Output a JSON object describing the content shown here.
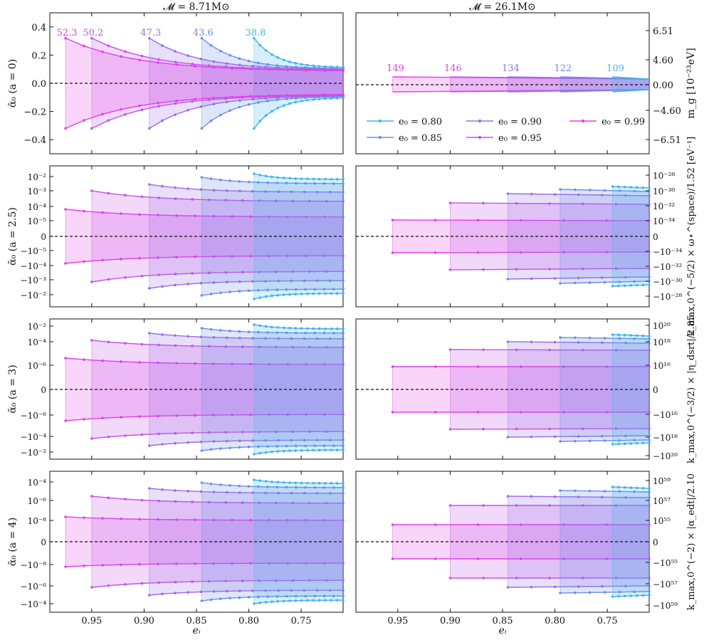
{
  "figure": {
    "col_titles": [
      "𝓜 = 8.71M⊙",
      "𝓜 = 26.1M⊙"
    ],
    "xlabel": "eᵢ",
    "x_ticks": [
      "0.95",
      "0.90",
      "0.85",
      "0.80",
      "0.75"
    ]
  },
  "colors": {
    "e0_0.80": "#43b4ec",
    "e0_0.85": "#6e8ee8",
    "e0_0.90": "#9a6ee6",
    "e0_0.95": "#c552e8",
    "e0_0.99": "#e43ee8",
    "zero_line": "#111111"
  },
  "chart_data": [
    {
      "type": "line",
      "panel": "row1-left",
      "ylabel": "ᾱ₀ (a = 0)",
      "y_ticks": [
        "0.4",
        "0.2",
        "0.0",
        "−0.2",
        "−0.4"
      ],
      "ylim": [
        -0.5,
        0.5
      ],
      "xlim": [
        0.99,
        0.71
      ],
      "annotations": [
        "52.3",
        "50.2",
        "47.3",
        "43.6",
        "38.8"
      ],
      "series": [
        {
          "name": "e0 = 0.99",
          "x_start": 0.975,
          "upper": [
            0.32,
            0.085
          ],
          "lower": [
            -0.32,
            -0.075
          ]
        },
        {
          "name": "e0 = 0.95",
          "x_start": 0.95,
          "upper": [
            0.32,
            0.09
          ],
          "lower": [
            -0.32,
            -0.08
          ]
        },
        {
          "name": "e0 = 0.90",
          "x_start": 0.895,
          "upper": [
            0.32,
            0.095
          ],
          "lower": [
            -0.32,
            -0.085
          ]
        },
        {
          "name": "e0 = 0.85",
          "x_start": 0.845,
          "upper": [
            0.32,
            0.1
          ],
          "lower": [
            -0.32,
            -0.09
          ]
        },
        {
          "name": "e0 = 0.80",
          "x_start": 0.795,
          "upper": [
            0.32,
            0.11
          ],
          "lower": [
            -0.32,
            -0.1
          ]
        }
      ]
    },
    {
      "type": "line",
      "panel": "row1-right",
      "ylabel": "m_g [10⁻²³eV]",
      "y_ticks": [
        "6.51",
        "4.60",
        "0.00",
        "−4.60",
        "−6.51"
      ],
      "annotations": [
        "149",
        "146",
        "134",
        "122",
        "109"
      ],
      "legend": [
        "e₀ = 0.80",
        "e₀ = 0.90",
        "e₀ = 0.99",
        "e₀ = 0.85",
        "e₀ = 0.95"
      ]
    },
    {
      "type": "line",
      "panel": "row2-left",
      "ylabel": "ᾱ₀ (a = 2.5)",
      "y_ticks": [
        "10⁻²",
        "10⁻³",
        "10⁻⁴",
        "10⁻⁵",
        "0",
        "−10⁻⁵",
        "−10⁻⁴",
        "−10⁻³",
        "−10⁻²"
      ]
    },
    {
      "type": "line",
      "panel": "row2-right",
      "ylabel": "k_max,0^(−5/2) × ω⋆^(space)/1.52 [eV⁻¹]",
      "y_ticks": [
        "10⁻²⁸",
        "10⁻³⁰",
        "10⁻³²",
        "10⁻³⁴",
        "0",
        "−10⁻³⁴",
        "−10⁻³²",
        "−10⁻³⁰",
        "−10⁻²⁸"
      ]
    },
    {
      "type": "line",
      "panel": "row3-left",
      "ylabel": "ᾱ₀ (a = 3)",
      "y_ticks": [
        "10⁻²",
        "10⁻⁴",
        "10⁻⁶",
        "0",
        "−10⁻⁶",
        "−10⁻⁴",
        "−10⁻²"
      ]
    },
    {
      "type": "line",
      "panel": "row3-right",
      "ylabel": "k_max,0^(−3/2) × |η_dsrt|/2.85",
      "y_ticks": [
        "10²⁰",
        "10¹⁸",
        "10¹⁶",
        "0",
        "−10¹⁶",
        "−10¹⁸",
        "−10²⁰"
      ]
    },
    {
      "type": "line",
      "panel": "row4-left",
      "ylabel": "ᾱ₀ (a = 4)",
      "y_ticks": [
        "10⁻⁴",
        "10⁻⁶",
        "10⁻⁸",
        "0",
        "−10⁻⁸",
        "−10⁻⁶",
        "−10⁻⁴"
      ]
    },
    {
      "type": "line",
      "panel": "row4-right",
      "ylabel": "k_max,0^(−2) × |α_edt|/2.10",
      "y_ticks": [
        "10⁵⁹",
        "10⁵⁷",
        "10⁵⁵",
        "0",
        "−10⁵⁵",
        "−10⁵⁷",
        "−10⁵⁹"
      ]
    }
  ]
}
